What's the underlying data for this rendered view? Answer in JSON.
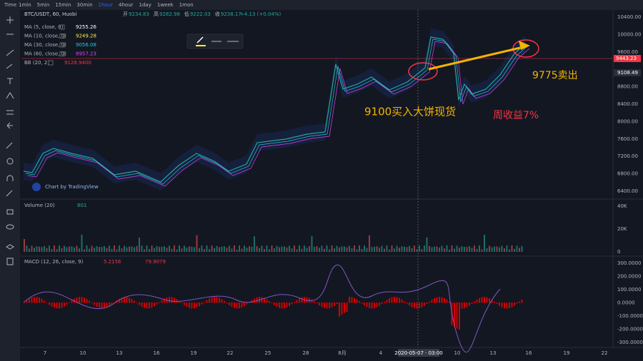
{
  "toolbar": {
    "label": "Time",
    "intervals": [
      "1min",
      "5min",
      "15min",
      "30min",
      "1hour",
      "4hour",
      "1day",
      "1week",
      "1mon"
    ]
  },
  "legend": {
    "symbol": "BTC/USDT, 60, Huobi",
    "ohlc": [
      {
        "label": "开",
        "value": "9234.83"
      },
      {
        "label": "高",
        "value": "9282.98"
      },
      {
        "label": "低",
        "value": "9222.03"
      },
      {
        "label": "收",
        "value": "9238.17"
      }
    ],
    "change": "+4.13 (+0.04%)",
    "indicators": [
      {
        "name": "MA (5, close, 0)",
        "value": "9255.26"
      },
      {
        "name": "MA (10, close, 0)",
        "value": "9249.28"
      },
      {
        "name": "MA (30, close, 0)",
        "value": "9056.08"
      },
      {
        "name": "MA (60, close, 0)",
        "value": "8957.23"
      },
      {
        "name": "BB (20, 2)",
        "value": "9128.9400"
      }
    ]
  },
  "price_axis": {
    "ticks": [
      "10400.00",
      "10000.00",
      "9600.00",
      "8800.00",
      "8400.00",
      "8000.00",
      "7600.00",
      "7200.00",
      "6800.00",
      "6400.00"
    ],
    "last_price": "9443.23",
    "marker": "9108.49"
  },
  "volume": {
    "title": "Volume (20)",
    "value": "801",
    "ticks": [
      "40K",
      "20K",
      "0"
    ]
  },
  "macd": {
    "title": "MACD (12, 26, close, 9)",
    "values": [
      "5.2156",
      "79.9079"
    ],
    "ticks": [
      "300.0000",
      "200.0000",
      "100.0000",
      "0.0000",
      "-100.0000",
      "-200.0000",
      "-300.0000"
    ]
  },
  "time_axis": {
    "labels": [
      "7",
      "10",
      "13",
      "16",
      "19",
      "22",
      "25",
      "28",
      "8月",
      "4",
      "10",
      "13",
      "16",
      "19",
      "22"
    ],
    "crosshair": "2020-05-07 · 03:00"
  },
  "watermark": "Chart by TradingView",
  "annotations": {
    "buy": "9100买入大饼现货",
    "gain": "周收益7%",
    "sell": "9775卖出"
  }
}
